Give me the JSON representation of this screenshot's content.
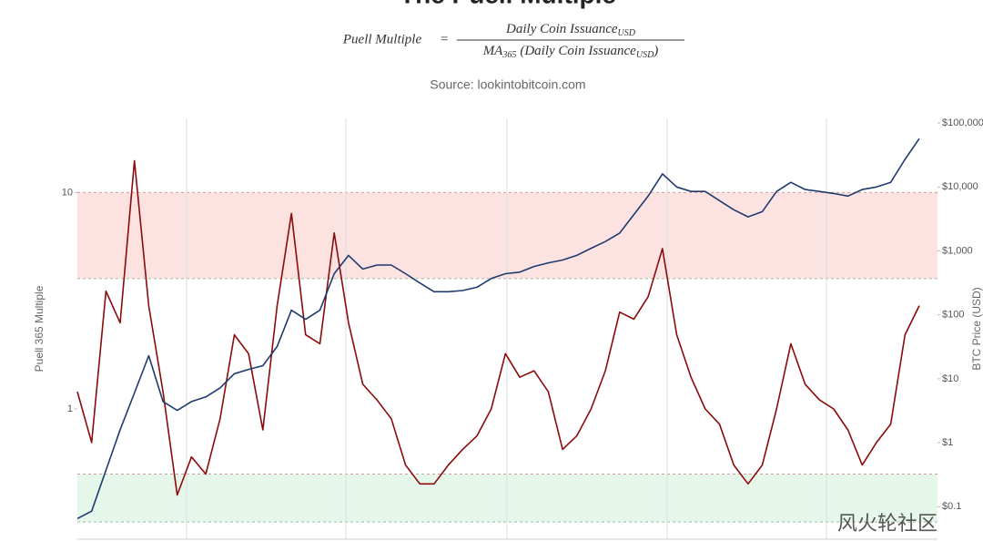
{
  "chart_data": {
    "type": "line",
    "title": "The Puell Multiple",
    "formula": {
      "lhs": "Puell Multiple",
      "equals": "=",
      "numerator": "Daily Coin Issuance",
      "numerator_sub": "USD",
      "denominator_ma": "MA",
      "denominator_ma_sub": "365",
      "denominator": "(Daily Coin Issuance",
      "denominator_sub": "USD",
      "denominator_end": ")"
    },
    "subtitle": "Source: lookintobitcoin.com",
    "y_label": "Puell 365 Multiple",
    "y2_label": "BTC Price (USD)",
    "watermark": "风火轮社区",
    "categories": [
      null,
      null,
      null,
      null,
      null,
      null,
      null,
      null,
      null,
      null,
      null,
      null,
      null,
      null,
      null,
      null,
      null,
      null,
      null,
      null,
      null,
      null,
      null,
      null,
      null,
      null,
      null,
      null,
      null,
      null,
      null,
      null,
      null,
      null,
      null,
      null,
      null,
      null,
      null,
      null,
      null,
      null,
      null,
      null,
      null,
      null,
      null,
      null,
      null,
      null,
      null,
      null,
      null,
      null,
      null,
      null,
      null,
      null,
      null,
      null
    ],
    "ylog": true,
    "ylim": [
      0.25,
      22
    ],
    "yticks": [
      1,
      10
    ],
    "y2log": true,
    "y2lim": [
      0.031,
      118000
    ],
    "y2ticks": [
      {
        "value": 0.1,
        "label": "$0.1"
      },
      {
        "value": 1,
        "label": "$1"
      },
      {
        "value": 10,
        "label": "$10"
      },
      {
        "value": 100,
        "label": "$100"
      },
      {
        "value": 1000,
        "label": "$1,000"
      },
      {
        "value": 10000,
        "label": "$10,000"
      },
      {
        "value": 100000,
        "label": "$100,000"
      }
    ],
    "bands": [
      {
        "from": 4,
        "to": 10,
        "color": "#fde2e2"
      },
      {
        "from": 0.3,
        "to": 0.5,
        "color": "#e5f6ea"
      }
    ],
    "series": [
      {
        "name": "Puell 365 Multiple",
        "color": "#8b0a0a",
        "values": [
          1.2,
          0.7,
          3.5,
          2.5,
          14,
          3.0,
          1.2,
          0.4,
          0.6,
          0.5,
          0.9,
          2.2,
          1.8,
          0.8,
          3.0,
          8,
          2.2,
          2.0,
          6.5,
          2.5,
          1.3,
          1.1,
          0.9,
          0.55,
          0.45,
          0.45,
          0.55,
          0.65,
          0.75,
          1.0,
          1.8,
          1.4,
          1.5,
          1.2,
          0.65,
          0.75,
          1.0,
          1.5,
          2.8,
          2.6,
          3.3,
          5.5,
          2.2,
          1.4,
          1.0,
          0.85,
          0.55,
          0.45,
          0.55,
          1.0,
          2.0,
          1.3,
          1.1,
          1.0,
          0.8,
          0.55,
          0.7,
          0.85,
          2.2,
          3.0
        ]
      },
      {
        "name": "BTC Price (USD)",
        "color": "#1f3b6e",
        "axis": "y2",
        "values": [
          0.065,
          0.085,
          0.37,
          1.6,
          6,
          23,
          4.4,
          3.2,
          4.4,
          5.2,
          7.2,
          12,
          14,
          16,
          32,
          118,
          85,
          118,
          440,
          850,
          520,
          600,
          600,
          440,
          315,
          230,
          230,
          240,
          270,
          370,
          440,
          465,
          570,
          650,
          720,
          850,
          1100,
          1400,
          1900,
          3700,
          7200,
          16000,
          10000,
          8500,
          8500,
          6100,
          4400,
          3400,
          4100,
          8500,
          11800,
          9100,
          8500,
          7900,
          7200,
          9100,
          10000,
          11800,
          27000,
          57000
        ]
      }
    ]
  }
}
